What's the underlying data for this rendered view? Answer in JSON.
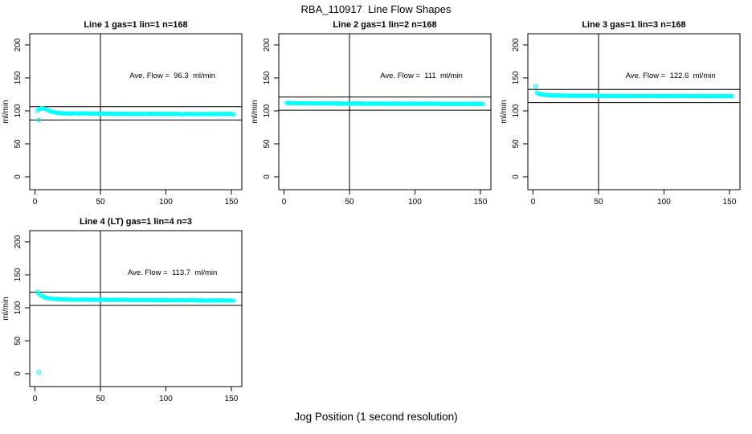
{
  "page": {
    "title": "RBA_110917  Line Flow Shapes",
    "xlabel": "Jog Position (1 second resolution)",
    "background": "#ffffff",
    "axis_color": "#000000",
    "point_color": "#00ffff"
  },
  "chart_data": [
    {
      "type": "scatter",
      "title": "Line 1 gas=1 lin=1 n=168",
      "annotation": "Ave. Flow =  96.3  ml/min",
      "ave_flow": 96.3,
      "ylabel": "ml/min",
      "x_ticks": [
        0,
        50,
        100,
        150
      ],
      "y_ticks": [
        0,
        50,
        100,
        150,
        200
      ],
      "xlim": [
        -4,
        158
      ],
      "ylim": [
        -19.5,
        217
      ],
      "vline_x": 50,
      "hlines": [
        86.3,
        106.3
      ],
      "marker": "open-circle",
      "color": "#00ffff",
      "x_start": 2,
      "x_end": 152,
      "x_step": 1,
      "series_keypoints": [
        [
          2,
          100.5
        ],
        [
          3,
          102
        ],
        [
          4,
          103.5
        ],
        [
          6,
          103.8
        ],
        [
          8,
          103
        ],
        [
          10,
          101
        ],
        [
          13,
          98.5
        ],
        [
          17,
          97
        ],
        [
          22,
          96.3
        ],
        [
          40,
          96
        ],
        [
          70,
          95.6
        ],
        [
          110,
          95.3
        ],
        [
          152,
          95.2
        ]
      ],
      "outliers": [
        [
          3,
          86
        ]
      ]
    },
    {
      "type": "scatter",
      "title": "Line 2 gas=1 lin=2 n=168",
      "annotation": "Ave. Flow =  111  ml/min",
      "ave_flow": 111,
      "ylabel": "ml/min",
      "x_ticks": [
        0,
        50,
        100,
        150
      ],
      "y_ticks": [
        0,
        50,
        100,
        150,
        200
      ],
      "xlim": [
        -4,
        158
      ],
      "ylim": [
        -19.5,
        217
      ],
      "vline_x": 50,
      "hlines": [
        101,
        121
      ],
      "marker": "open-circle",
      "color": "#00ffff",
      "x_start": 2,
      "x_end": 152,
      "x_step": 1,
      "series_keypoints": [
        [
          2,
          112.3
        ],
        [
          4,
          112
        ],
        [
          10,
          111.8
        ],
        [
          20,
          111.5
        ],
        [
          40,
          111.2
        ],
        [
          70,
          111
        ],
        [
          110,
          110.8
        ],
        [
          152,
          110.6
        ]
      ],
      "outliers": []
    },
    {
      "type": "scatter",
      "title": "Line 3 gas=1 lin=3 n=168",
      "annotation": "Ave. Flow =  122.6  ml/min",
      "ave_flow": 122.6,
      "ylabel": "ml/min",
      "x_ticks": [
        0,
        50,
        100,
        150
      ],
      "y_ticks": [
        0,
        50,
        100,
        150,
        200
      ],
      "xlim": [
        -4,
        158
      ],
      "ylim": [
        -19.5,
        217
      ],
      "vline_x": 50,
      "hlines": [
        112.6,
        132.6
      ],
      "marker": "open-circle",
      "color": "#00ffff",
      "x_start": 3,
      "x_end": 152,
      "x_step": 1,
      "series_keypoints": [
        [
          3,
          127.5
        ],
        [
          4,
          126.3
        ],
        [
          6,
          125.2
        ],
        [
          9,
          124.3
        ],
        [
          13,
          123.7
        ],
        [
          20,
          123.2
        ],
        [
          35,
          122.9
        ],
        [
          60,
          122.7
        ],
        [
          100,
          122.5
        ],
        [
          152,
          122.4
        ]
      ],
      "outliers": [
        [
          2,
          137
        ]
      ]
    },
    {
      "type": "scatter",
      "title": "Line 4 (LT) gas=1 lin=4 n=3",
      "annotation": "Ave. Flow =  113.7  ml/min",
      "ave_flow": 113.7,
      "ylabel": "ml/min",
      "x_ticks": [
        0,
        50,
        100,
        150
      ],
      "y_ticks": [
        0,
        50,
        100,
        150,
        200
      ],
      "xlim": [
        -4,
        158
      ],
      "ylim": [
        -19.5,
        217
      ],
      "vline_x": 50,
      "hlines": [
        103.7,
        123.7
      ],
      "marker": "open-circle",
      "color": "#00ffff",
      "x_start": 2,
      "x_end": 152,
      "x_step": 1,
      "series_keypoints": [
        [
          2,
          124.5
        ],
        [
          3,
          121.5
        ],
        [
          4,
          119.5
        ],
        [
          6,
          117.3
        ],
        [
          8,
          115.8
        ],
        [
          11,
          114.3
        ],
        [
          15,
          113.4
        ],
        [
          20,
          112.9
        ],
        [
          30,
          112.4
        ],
        [
          50,
          112.1
        ],
        [
          80,
          111.8
        ],
        [
          110,
          111.4
        ],
        [
          152,
          111
        ]
      ],
      "outliers": [
        [
          3,
          2
        ]
      ]
    }
  ]
}
